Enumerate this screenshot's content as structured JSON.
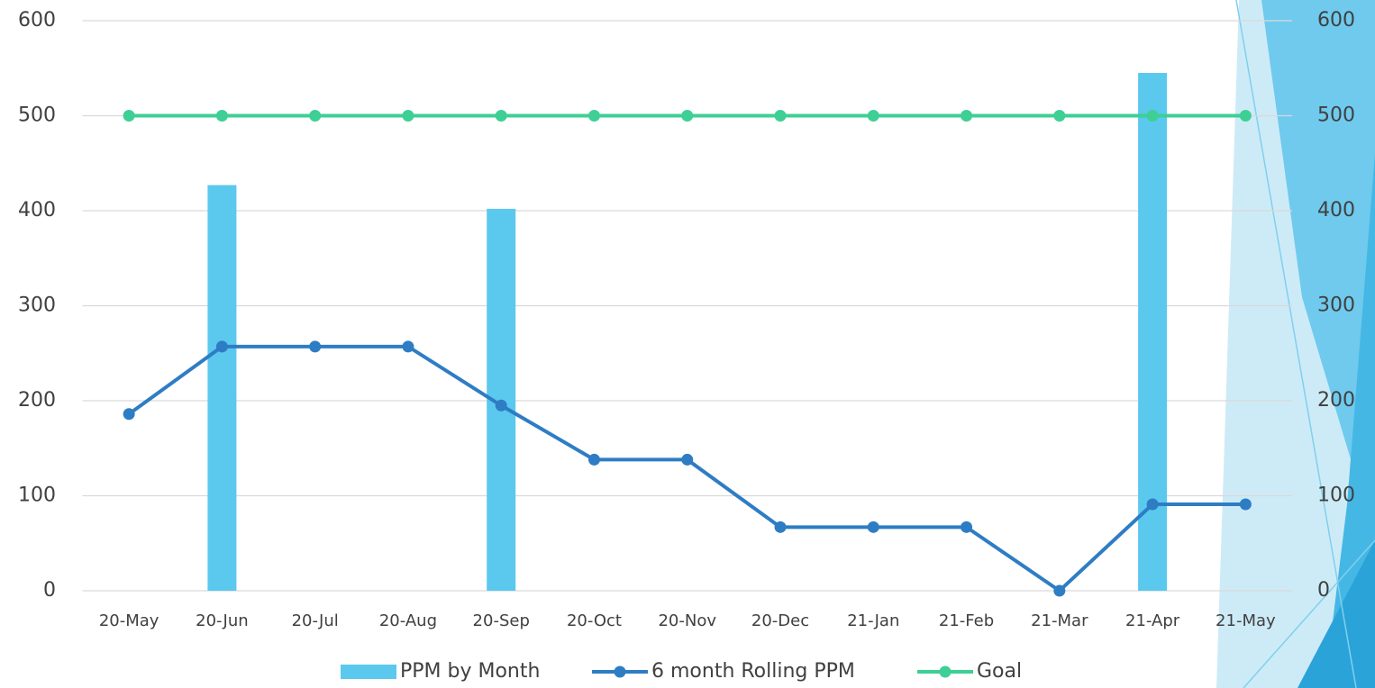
{
  "chart_data": {
    "type": "bar-line",
    "categories": [
      "20-May",
      "20-Jun",
      "20-Jul",
      "20-Aug",
      "20-Sep",
      "20-Oct",
      "20-Nov",
      "20-Dec",
      "21-Jan",
      "21-Feb",
      "21-Mar",
      "21-Apr",
      "21-May"
    ],
    "series": [
      {
        "name": "PPM by Month",
        "type": "bar",
        "color": "#5bc8ee",
        "values": [
          0,
          427,
          0,
          0,
          402,
          0,
          0,
          0,
          0,
          0,
          0,
          545,
          0
        ]
      },
      {
        "name": "6 month Rolling PPM",
        "type": "line",
        "color": "#2e7dc4",
        "values": [
          186,
          257,
          257,
          257,
          195,
          138,
          138,
          67,
          67,
          67,
          0,
          91,
          91
        ]
      },
      {
        "name": "Goal",
        "type": "line",
        "color": "#3ecf95",
        "axis": "y2",
        "values": [
          500,
          500,
          500,
          500,
          500,
          500,
          500,
          500,
          500,
          500,
          500,
          500,
          500
        ]
      }
    ],
    "ylim": [
      0,
      600
    ],
    "yticks": [
      0,
      100,
      200,
      300,
      400,
      500,
      600
    ],
    "y2lim": [
      0,
      600
    ],
    "y2ticks": [
      0,
      100,
      200,
      300,
      400,
      500,
      600
    ],
    "grid": true,
    "legend": "bottom"
  }
}
